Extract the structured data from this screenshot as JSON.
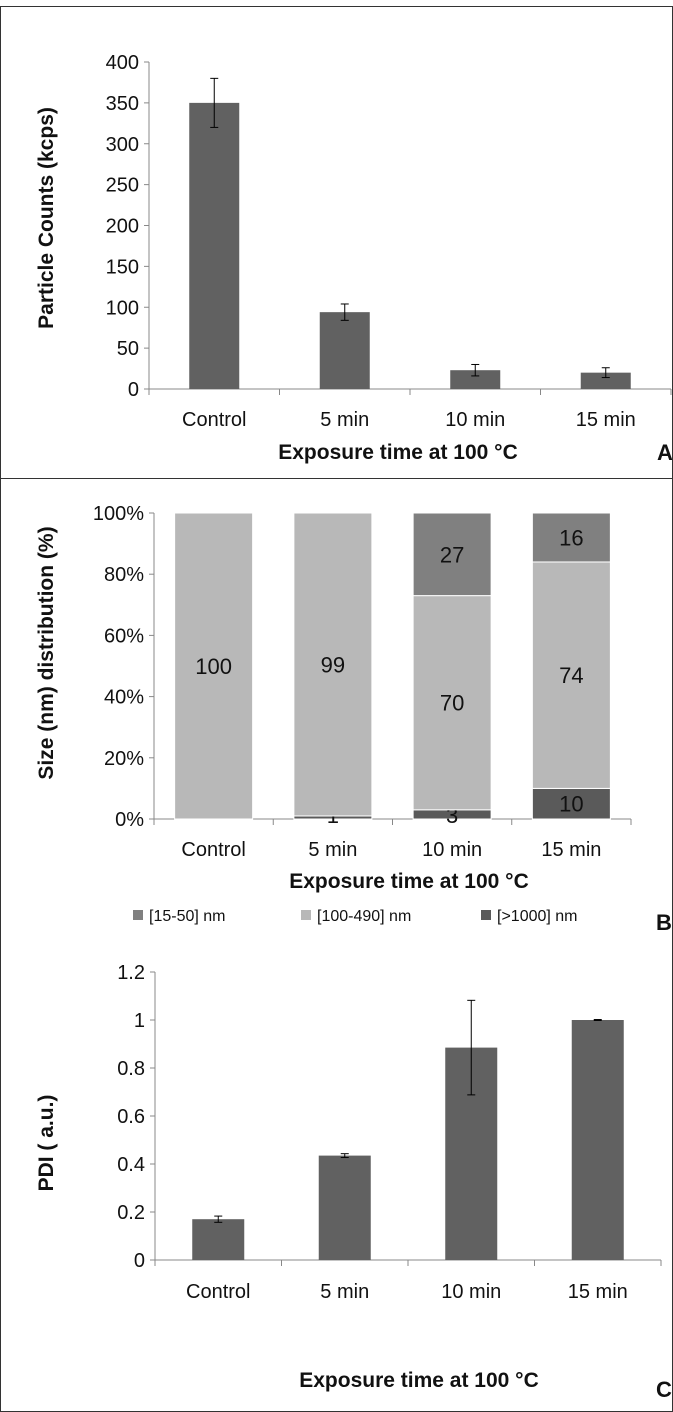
{
  "chart_data": [
    {
      "type": "bar",
      "panel": "A",
      "categories": [
        "Control",
        "5 min",
        "10 min",
        "15 min"
      ],
      "values": [
        350,
        94,
        23,
        20
      ],
      "errors": [
        30,
        10,
        7,
        6
      ],
      "ylabel": "Particle Counts (kcps)",
      "xlabel": "Exposure time at 100 °C",
      "ylim": [
        0,
        400
      ],
      "yticks": [
        0,
        50,
        100,
        150,
        200,
        250,
        300,
        350,
        400
      ],
      "ytick_labels": [
        "0",
        "50",
        "100",
        "150",
        "200",
        "250",
        "300",
        "350",
        "400"
      ],
      "grid": false,
      "bar_color": "#616161"
    },
    {
      "type": "bar",
      "stacked": "percent",
      "panel": "B",
      "categories": [
        "Control",
        "5 min",
        "10 min",
        "15 min"
      ],
      "series": [
        {
          "name": "[>1000] nm",
          "values": [
            0,
            1,
            3,
            10
          ],
          "color": "#5a5a5a"
        },
        {
          "name": "[100-490] nm",
          "values": [
            100,
            99,
            70,
            74
          ],
          "color": "#b8b8b8"
        },
        {
          "name": "[15-50] nm",
          "values": [
            0,
            0,
            27,
            16
          ],
          "color": "#808080"
        }
      ],
      "data_labels": [
        [
          "",
          "1",
          "3",
          "10"
        ],
        [
          "100",
          "99",
          "70",
          "74"
        ],
        [
          "",
          "",
          "27",
          "16"
        ]
      ],
      "legend_order": [
        "[15-50] nm",
        "[100-490] nm",
        "[>1000] nm"
      ],
      "legend_position": "bottom",
      "ylabel": "Size (nm) distribution (%)",
      "xlabel": "Exposure time at 100 °C",
      "ylim": [
        0,
        100
      ],
      "yticks": [
        0,
        20,
        40,
        60,
        80,
        100
      ],
      "ytick_labels": [
        "0%",
        "20%",
        "40%",
        "60%",
        "80%",
        "100%"
      ],
      "grid": false
    },
    {
      "type": "bar",
      "panel": "C",
      "categories": [
        "Control",
        "5 min",
        "10 min",
        "15 min"
      ],
      "values": [
        0.17,
        0.435,
        0.885,
        1.0
      ],
      "errors": [
        0.013,
        0.008,
        0.197,
        0.002
      ],
      "ylabel": "PDI ( a.u.)",
      "xlabel": "Exposure time at 100 °C",
      "ylim": [
        0,
        1.2
      ],
      "yticks": [
        0,
        0.2,
        0.4,
        0.6,
        0.8,
        1.0,
        1.2
      ],
      "ytick_labels": [
        "0",
        "0.2",
        "0.4",
        "0.6",
        "0.8",
        "1",
        "1.2"
      ],
      "grid": false,
      "bar_color": "#616161"
    }
  ],
  "panel_letters": {
    "a": "A",
    "b": "B",
    "c": "C"
  },
  "colors": {
    "axis": "#888888",
    "text": "#111111",
    "bar": "#616161"
  }
}
